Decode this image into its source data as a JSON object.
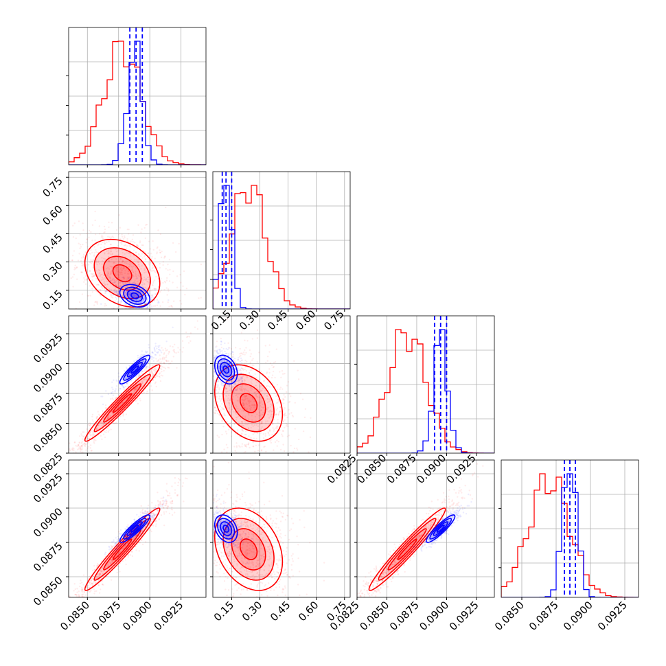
{
  "chart_data": {
    "type": "corner",
    "grid": true,
    "colors": {
      "red_series": "#ff0000",
      "blue_series": "#0000ff"
    },
    "parameters": [
      {
        "range": [
          0.0835,
          0.0945
        ],
        "ticks": [
          0.085,
          0.0875,
          0.09,
          0.0925
        ],
        "tick_labels": [
          "0.0850",
          "0.0875",
          "0.0900",
          "0.0925"
        ]
      },
      {
        "range": [
          0.05,
          0.78
        ],
        "ticks": [
          0.15,
          0.3,
          0.45,
          0.6,
          0.75
        ],
        "tick_labels": [
          "0.15",
          "0.30",
          "0.45",
          "0.60",
          "0.75"
        ]
      },
      {
        "range": [
          0.0825,
          0.094
        ],
        "ticks": [
          0.0825,
          0.085,
          0.0875,
          0.09,
          0.0925
        ],
        "tick_labels": [
          "0.0825",
          "0.0850",
          "0.0875",
          "0.0900",
          "0.0925"
        ]
      },
      {
        "range": [
          0.0835,
          0.0935
        ],
        "ticks": [
          0.085,
          0.0875,
          0.09,
          0.0925
        ],
        "tick_labels": [
          "0.0850",
          "0.0875",
          "0.0900",
          "0.0925"
        ]
      }
    ],
    "series": [
      {
        "color": "red",
        "means": [
          0.0878,
          0.24,
          0.0867,
          0.087
        ],
        "stds": [
          0.0015,
          0.09,
          0.0016,
          0.0015
        ],
        "correlations": [
          [
            0,
            1,
            -0.3
          ],
          [
            0,
            2,
            0.97
          ],
          [
            0,
            3,
            0.97
          ],
          [
            1,
            2,
            -0.3
          ],
          [
            1,
            3,
            -0.3
          ],
          [
            2,
            3,
            0.97
          ]
        ],
        "quantile_lines": []
      },
      {
        "color": "blue",
        "means": [
          0.0888,
          0.12,
          0.0895,
          0.0885
        ],
        "stds": [
          0.0006,
          0.03,
          0.0006,
          0.0005
        ],
        "correlations": [
          [
            0,
            1,
            -0.3
          ],
          [
            0,
            2,
            0.9
          ],
          [
            0,
            3,
            0.9
          ],
          [
            1,
            2,
            -0.3
          ],
          [
            1,
            3,
            -0.3
          ],
          [
            2,
            3,
            0.9
          ]
        ],
        "quantile_lines": [
          [
            0.0884,
            0.0889,
            0.0894
          ],
          [
            0.1,
            0.12,
            0.15
          ],
          [
            0.089,
            0.0895,
            0.09
          ],
          [
            0.0881,
            0.0885,
            0.0889
          ]
        ]
      }
    ]
  }
}
